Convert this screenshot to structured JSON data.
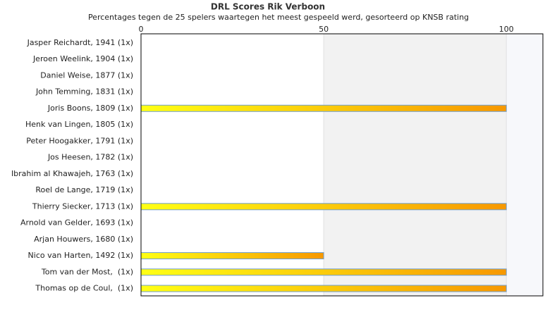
{
  "chart_data": {
    "type": "hbar",
    "title": "DRL Scores Rik Verboon",
    "subtitle": "Percentages tegen de 25 spelers waartegen het meest gespeeld werd, gesorteerd op KNSB rating",
    "categories": [
      "Jasper Reichardt, 1941 (1x)",
      "Jeroen Weelink, 1904 (1x)",
      "Daniel Weise, 1877 (1x)",
      "John Temming, 1831 (1x)",
      "Joris Boons, 1809 (1x)",
      "Henk van Lingen, 1805 (1x)",
      "Peter Hoogakker, 1791 (1x)",
      "Jos Heesen, 1782 (1x)",
      "Ibrahim al Khawajeh, 1763 (1x)",
      "Roel de Lange, 1719 (1x)",
      "Thierry Siecker, 1713 (1x)",
      "Arnold van Gelder, 1693 (1x)",
      "Arjan Houwers, 1680 (1x)",
      "Nico van Harten, 1492 (1x)",
      "Tom van der Most,  (1x)",
      "Thomas op de Coul,  (1x)"
    ],
    "values": [
      0,
      0,
      0,
      0,
      100,
      0,
      0,
      0,
      0,
      0,
      100,
      0,
      0,
      50,
      100,
      100
    ],
    "gradient": [
      "#ffff14",
      "#f79800"
    ],
    "stroke": "#6f9fcf",
    "xlim": [
      0,
      110
    ],
    "xticks": [
      0,
      50,
      100
    ],
    "grid": true
  }
}
